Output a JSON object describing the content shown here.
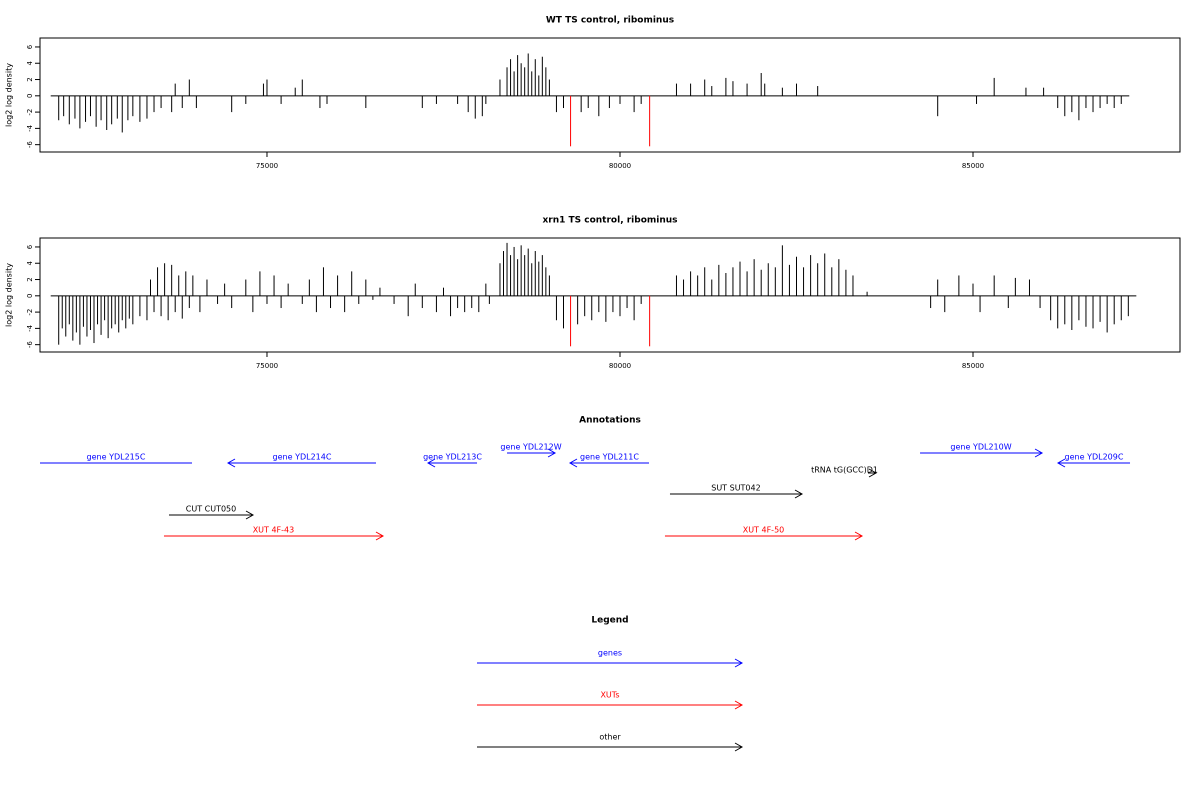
{
  "chart_data": [
    {
      "type": "bar",
      "title": "WT TS control, ribominus",
      "y_label": "log2 log density",
      "xlim": [
        71785,
        87932
      ],
      "ylim": [
        -6.9,
        7.1
      ],
      "xticks": [
        75000,
        80000,
        85000
      ],
      "yticks": [
        -6,
        -4,
        -2,
        0,
        2,
        4,
        6
      ],
      "series": [
        {
          "color": "#000000",
          "x": [
            72050,
            72120,
            72200,
            72280,
            72350,
            72430,
            72500,
            72580,
            72650,
            72730,
            72800,
            72880,
            72950,
            73030,
            73100,
            73200,
            73300,
            73400,
            73500,
            73650,
            73700,
            73800,
            73900,
            74000,
            74500,
            74700,
            74950,
            75000,
            75200,
            75400,
            75500,
            75750,
            75850,
            76400,
            77200,
            77400,
            77700,
            77850,
            77950,
            78050,
            78100,
            78300,
            78400,
            78450,
            78500,
            78550,
            78600,
            78650,
            78700,
            78750,
            78800,
            78850,
            78900,
            78950,
            79000,
            79100,
            79200,
            79450,
            79550,
            79700,
            79850,
            80000,
            80200,
            80300,
            80800,
            81000,
            81200,
            81300,
            81500,
            81600,
            81800,
            82000,
            82050,
            82300,
            82500,
            82800,
            84500,
            85050,
            85300,
            85750,
            86000,
            86200,
            86300,
            86400,
            86500,
            86600,
            86700,
            86800,
            86900,
            87000,
            87100
          ],
          "values": [
            -3,
            -2.5,
            -3.5,
            -2.8,
            -4,
            -3.2,
            -2.5,
            -3.8,
            -3,
            -4.2,
            -3.5,
            -2.8,
            -4.5,
            -3,
            -2.5,
            -3.2,
            -2.8,
            -2,
            -1.5,
            -2,
            1.5,
            -1.5,
            2,
            -1.5,
            -2,
            -1,
            1.5,
            2,
            -1,
            1,
            2,
            -1.5,
            -1,
            -1.5,
            -1.5,
            -1,
            -1,
            -2,
            -2.8,
            -2.5,
            -1,
            2,
            3.5,
            4.5,
            3,
            5,
            4,
            3.5,
            5.2,
            3,
            4.5,
            2.5,
            4.8,
            3.5,
            2,
            -2,
            -1.5,
            -2,
            -1.5,
            -2.5,
            -1.5,
            -1,
            -2,
            -1,
            1.5,
            1.5,
            2,
            1.2,
            2.2,
            1.8,
            1.5,
            2.8,
            1.5,
            1,
            1.5,
            1.2,
            -2.5,
            -1,
            2.2,
            1,
            1,
            -1.5,
            -2.5,
            -2,
            -3,
            -1.5,
            -2,
            -1.5,
            -1,
            -1.5,
            -1
          ]
        },
        {
          "color": "#ff0000",
          "x": [
            79300,
            80420
          ],
          "values": [
            -6.2,
            -6.2
          ]
        }
      ]
    },
    {
      "type": "bar",
      "title": "xrn1 TS control, ribominus",
      "y_label": "log2 log density",
      "xlim": [
        71785,
        87932
      ],
      "ylim": [
        -6.9,
        7.1
      ],
      "xticks": [
        75000,
        80000,
        85000
      ],
      "yticks": [
        -6,
        -4,
        -2,
        0,
        2,
        4,
        6
      ],
      "series": [
        {
          "color": "#000000",
          "x": [
            72050,
            72100,
            72150,
            72200,
            72250,
            72300,
            72350,
            72400,
            72450,
            72500,
            72550,
            72600,
            72650,
            72700,
            72750,
            72800,
            72850,
            72900,
            72950,
            73000,
            73050,
            73100,
            73200,
            73300,
            73350,
            73400,
            73450,
            73500,
            73550,
            73600,
            73650,
            73700,
            73750,
            73800,
            73850,
            73900,
            73950,
            74050,
            74150,
            74300,
            74400,
            74500,
            74700,
            74800,
            74900,
            75000,
            75100,
            75200,
            75300,
            75500,
            75600,
            75700,
            75800,
            75900,
            76000,
            76100,
            76200,
            76300,
            76400,
            76500,
            76600,
            76800,
            77000,
            77100,
            77200,
            77400,
            77500,
            77600,
            77700,
            77800,
            77900,
            78000,
            78100,
            78150,
            78300,
            78350,
            78400,
            78450,
            78500,
            78550,
            78600,
            78650,
            78700,
            78750,
            78800,
            78850,
            78900,
            78950,
            79000,
            79100,
            79200,
            79400,
            79500,
            79600,
            79700,
            79800,
            79900,
            80000,
            80100,
            80200,
            80300,
            80800,
            80900,
            81000,
            81100,
            81200,
            81300,
            81400,
            81500,
            81600,
            81700,
            81800,
            81900,
            82000,
            82100,
            82200,
            82300,
            82400,
            82500,
            82600,
            82700,
            82800,
            82900,
            83000,
            83100,
            83200,
            83300,
            83500,
            84400,
            84500,
            84600,
            84800,
            85000,
            85100,
            85300,
            85500,
            85600,
            85800,
            85950,
            86100,
            86200,
            86300,
            86400,
            86500,
            86600,
            86700,
            86800,
            86900,
            87000,
            87100,
            87200
          ],
          "values": [
            -6,
            -4,
            -5,
            -3.5,
            -5.5,
            -4.5,
            -6,
            -3.8,
            -5,
            -4.2,
            -5.8,
            -3.5,
            -4.8,
            -3,
            -5.2,
            -4,
            -3.5,
            -4.5,
            -3,
            -4,
            -2.8,
            -3.5,
            -2.5,
            -3,
            2,
            -2,
            3.5,
            -2.5,
            4,
            -3,
            3.8,
            -2,
            2.5,
            -2.8,
            3,
            -1.5,
            2.5,
            -2,
            2,
            -1,
            1.5,
            -1.5,
            2,
            -2,
            3,
            -1,
            2.5,
            -1.5,
            1.5,
            -1,
            2,
            -2,
            3.5,
            -1.5,
            2.5,
            -2,
            3,
            -1,
            2,
            -0.5,
            1,
            -1,
            -2.5,
            1.5,
            -1.5,
            -2,
            1,
            -2.5,
            -1.5,
            -2,
            -1.5,
            -2,
            1.5,
            -1,
            4,
            5.5,
            6.5,
            5,
            6,
            4.5,
            6.2,
            5,
            5.8,
            4,
            5.5,
            4.2,
            5,
            3.5,
            2.5,
            -3,
            -4,
            -3.5,
            -2.5,
            -3,
            -2,
            -3.2,
            -2,
            -2.5,
            -1.5,
            -3,
            -1,
            2.5,
            2,
            3,
            2.5,
            3.5,
            2,
            3.8,
            2.8,
            3.5,
            4.2,
            3,
            4.5,
            3.2,
            4,
            3.5,
            6.2,
            3.8,
            4.8,
            3.5,
            5,
            4,
            5.2,
            3.5,
            4.5,
            3.2,
            2.5,
            0.5,
            -1.5,
            2,
            -2,
            2.5,
            1.5,
            -2,
            2.5,
            -1.5,
            2.2,
            2,
            -1.5,
            -3,
            -4,
            -3.5,
            -4.2,
            -3,
            -3.8,
            -4,
            -3.2,
            -4.5,
            -3.5,
            -3,
            -2.5
          ]
        },
        {
          "color": "#ff0000",
          "x": [
            79300,
            80420
          ],
          "values": [
            -6.2,
            -6.2
          ]
        }
      ]
    }
  ],
  "annotations": {
    "title": "Annotations",
    "features": [
      {
        "label": "gene YDL215C",
        "color": "#0000ff",
        "start": 71785,
        "end": 73938,
        "strand": "-",
        "row": 1
      },
      {
        "label": "gene YDL214C",
        "color": "#0000ff",
        "start": 74448,
        "end": 76544,
        "strand": "-",
        "row": 1
      },
      {
        "label": "gene YDL213C",
        "color": "#0000ff",
        "start": 77281,
        "end": 77975,
        "strand": "-",
        "row": 1
      },
      {
        "label": "gene YDL212W",
        "color": "#0000ff",
        "start": 78400,
        "end": 79080,
        "strand": "+",
        "row": 0
      },
      {
        "label": "gene YDL211C",
        "color": "#0000ff",
        "start": 79292,
        "end": 80411,
        "strand": "-",
        "row": 1
      },
      {
        "label": "gene YDL210W",
        "color": "#0000ff",
        "start": 84250,
        "end": 85978,
        "strand": "+",
        "row": 0
      },
      {
        "label": "gene YDL209C",
        "color": "#0000ff",
        "start": 86204,
        "end": 87224,
        "strand": "-",
        "row": 1
      },
      {
        "label": "tRNA tG(GCC)D1",
        "color": "#000000",
        "start": 83513,
        "end": 83626,
        "strand": "+",
        "row": 2
      },
      {
        "label": "SUT SUT042",
        "color": "#000000",
        "start": 80708,
        "end": 82578,
        "strand": "+",
        "row": 3
      },
      {
        "label": "CUT CUT050",
        "color": "#000000",
        "start": 73612,
        "end": 74802,
        "strand": "+",
        "row": 4
      },
      {
        "label": "XUT 4F-43",
        "color": "#ff0000",
        "start": 73541,
        "end": 76643,
        "strand": "+",
        "row": 5
      },
      {
        "label": "XUT 4F-50",
        "color": "#ff0000",
        "start": 80637,
        "end": 83428,
        "strand": "+",
        "row": 5
      }
    ]
  },
  "legend": {
    "title": "Legend",
    "items": [
      {
        "label": "genes",
        "color": "#0000ff"
      },
      {
        "label": "XUTs",
        "color": "#ff0000"
      },
      {
        "label": "other",
        "color": "#000000"
      }
    ]
  }
}
